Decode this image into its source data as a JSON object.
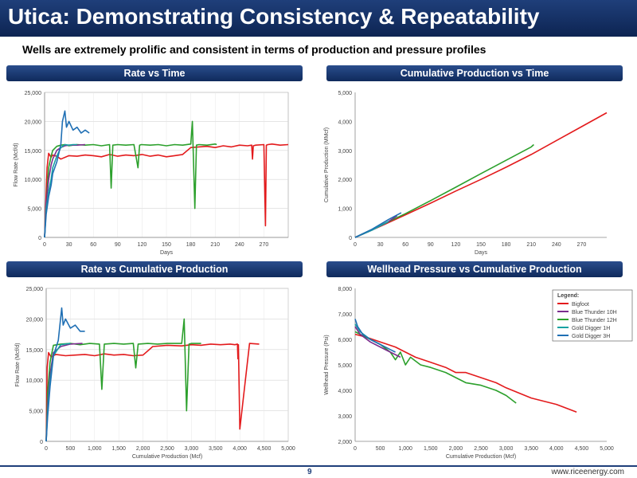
{
  "slide": {
    "title": "Utica: Demonstrating Consistency & Repeatability",
    "subtitle": "Wells are extremely prolific and consistent in terms of production and pressure profiles",
    "page_number": "9",
    "website": "www.riceenergy.com"
  },
  "colors": {
    "title_bar": "#1f3f7a",
    "bigfoot": "#e31a1c",
    "blue_thunder_10h": "#7b2d8e",
    "blue_thunder_12h": "#2ca02c",
    "gold_digger_1h": "#17a2a2",
    "gold_digger_3h": "#1f6fb4"
  },
  "legend": {
    "title": "Legend:",
    "items": [
      "Bigfoot",
      "Blue Thunder 10H",
      "Blue Thunder 12H",
      "Gold Digger 1H",
      "Gold Digger 3H"
    ]
  },
  "chart_data": [
    {
      "type": "line",
      "title": "Rate vs Time",
      "xlabel": "Days",
      "ylabel": "Flow Rate (Mcf/d)",
      "xlim": [
        0,
        300
      ],
      "ylim": [
        0,
        25000
      ],
      "xticks": [
        "0",
        "30",
        "60",
        "90",
        "120",
        "150",
        "180",
        "210",
        "240",
        "270"
      ],
      "yticks": [
        "0",
        "5,000",
        "10,000",
        "15,000",
        "20,000",
        "25,000"
      ],
      "grid": true,
      "series": [
        {
          "name": "Bigfoot",
          "x": [
            0,
            3,
            5,
            8,
            10,
            15,
            20,
            30,
            40,
            50,
            60,
            70,
            80,
            90,
            100,
            110,
            120,
            130,
            140,
            150,
            160,
            170,
            180,
            190,
            200,
            210,
            220,
            230,
            240,
            250,
            255,
            256,
            257,
            260,
            270,
            272,
            273,
            275,
            280,
            290,
            300
          ],
          "y": [
            0,
            12000,
            14500,
            13800,
            14200,
            14000,
            13500,
            14100,
            14000,
            14200,
            14100,
            13900,
            14300,
            14000,
            14200,
            14100,
            14300,
            14000,
            14200,
            13900,
            14100,
            14300,
            15500,
            15600,
            15700,
            15500,
            15800,
            15600,
            15900,
            15800,
            15900,
            13500,
            15800,
            15900,
            16000,
            2000,
            15900,
            16000,
            16100,
            15900,
            16000
          ]
        },
        {
          "name": "Blue Thunder 12H",
          "x": [
            0,
            3,
            5,
            8,
            10,
            15,
            20,
            25,
            30,
            40,
            50,
            60,
            70,
            80,
            82,
            84,
            90,
            100,
            110,
            115,
            117,
            119,
            130,
            140,
            150,
            160,
            170,
            180,
            182,
            185,
            187,
            190,
            200,
            210,
            212
          ],
          "y": [
            0,
            8000,
            12000,
            14000,
            15000,
            15700,
            15900,
            16000,
            15800,
            16000,
            15900,
            16000,
            15800,
            16000,
            8500,
            15900,
            16000,
            15900,
            16000,
            12000,
            15900,
            16000,
            15900,
            16000,
            15800,
            16000,
            15900,
            16100,
            20000,
            5000,
            15900,
            16000,
            15900,
            16100,
            16000
          ]
        },
        {
          "name": "Blue Thunder 10H",
          "x": [
            0,
            2,
            5,
            8,
            10,
            15,
            20,
            25,
            30,
            40,
            50
          ],
          "y": [
            0,
            6000,
            10000,
            12500,
            13500,
            15000,
            15500,
            15800,
            15900,
            15900,
            16000
          ]
        },
        {
          "name": "Gold Digger 1H",
          "x": [
            0,
            2,
            5,
            8,
            10,
            15,
            20,
            25,
            30,
            35,
            40
          ],
          "y": [
            0,
            5000,
            8000,
            10000,
            12000,
            14000,
            15500,
            16000,
            15900,
            16000,
            16000
          ]
        },
        {
          "name": "Gold Digger 3H",
          "x": [
            0,
            2,
            5,
            8,
            10,
            15,
            20,
            22,
            25,
            27,
            30,
            35,
            40,
            45,
            50,
            55
          ],
          "y": [
            0,
            4000,
            7000,
            9000,
            11000,
            13000,
            16000,
            20000,
            21800,
            19000,
            20000,
            18500,
            19000,
            18000,
            18500,
            18000
          ]
        }
      ]
    },
    {
      "type": "line",
      "title": "Cumulative Production vs Time",
      "xlabel": "Days",
      "ylabel": "Cumulative Production (MMcf)",
      "xlim": [
        0,
        300
      ],
      "ylim": [
        0,
        5000
      ],
      "xticks": [
        "0",
        "30",
        "60",
        "90",
        "120",
        "150",
        "180",
        "210",
        "240",
        "270"
      ],
      "yticks": [
        "0",
        "1,000",
        "2,000",
        "3,000",
        "4,000",
        "5,000"
      ],
      "grid": false,
      "series": [
        {
          "name": "Bigfoot",
          "x": [
            0,
            30,
            60,
            90,
            120,
            150,
            180,
            210,
            240,
            270,
            300
          ],
          "y": [
            0,
            380,
            780,
            1180,
            1600,
            2000,
            2420,
            2860,
            3340,
            3820,
            4300
          ]
        },
        {
          "name": "Blue Thunder 12H",
          "x": [
            0,
            30,
            60,
            90,
            120,
            150,
            180,
            210,
            213
          ],
          "y": [
            0,
            410,
            820,
            1270,
            1730,
            2200,
            2660,
            3120,
            3200
          ]
        },
        {
          "name": "Blue Thunder 10H",
          "x": [
            0,
            20,
            40,
            50
          ],
          "y": [
            0,
            250,
            550,
            750
          ]
        },
        {
          "name": "Gold Digger 1H",
          "x": [
            0,
            20,
            40
          ],
          "y": [
            0,
            250,
            550
          ]
        },
        {
          "name": "Gold Digger 3H",
          "x": [
            0,
            20,
            40,
            55
          ],
          "y": [
            0,
            280,
            620,
            850
          ]
        }
      ]
    },
    {
      "type": "line",
      "title": "Rate vs Cumulative Production",
      "xlabel": "Cumulative Production (Mcf)",
      "ylabel": "Flow Rate (Mcf/d)",
      "xlim": [
        0,
        5000
      ],
      "ylim": [
        0,
        25000
      ],
      "xticks": [
        "0",
        "500",
        "1,000",
        "1,500",
        "2,000",
        "2,500",
        "3,000",
        "3,500",
        "4,000",
        "4,500",
        "5,000"
      ],
      "yticks": [
        "0",
        "5,000",
        "10,000",
        "15,000",
        "20,000",
        "25,000"
      ],
      "grid": true,
      "series": [
        {
          "name": "Bigfoot",
          "x": [
            0,
            20,
            50,
            100,
            200,
            400,
            600,
            800,
            1000,
            1200,
            1400,
            1600,
            1800,
            2000,
            2200,
            2500,
            2800,
            3000,
            3200,
            3400,
            3600,
            3800,
            3900,
            3950,
            3960,
            3970,
            4000,
            4200,
            4400
          ],
          "y": [
            0,
            12000,
            14500,
            13800,
            14200,
            14000,
            14100,
            14200,
            14000,
            14300,
            14100,
            14200,
            14000,
            14100,
            15500,
            15700,
            15600,
            15800,
            15700,
            15900,
            15800,
            15900,
            15800,
            15900,
            13500,
            15800,
            2000,
            16000,
            15900
          ]
        },
        {
          "name": "Blue Thunder 12H",
          "x": [
            0,
            30,
            80,
            150,
            300,
            500,
            700,
            900,
            1100,
            1150,
            1200,
            1400,
            1600,
            1800,
            1850,
            1900,
            2100,
            2300,
            2500,
            2800,
            2850,
            2900,
            2950,
            3000,
            3200
          ],
          "y": [
            0,
            8000,
            13000,
            15700,
            15900,
            16000,
            15800,
            16000,
            15900,
            8500,
            15900,
            16000,
            15900,
            16000,
            12000,
            15900,
            16000,
            15900,
            16000,
            16000,
            20000,
            5000,
            15900,
            16000,
            16000
          ]
        },
        {
          "name": "Blue Thunder 10H",
          "x": [
            0,
            30,
            80,
            150,
            300,
            500,
            750
          ],
          "y": [
            0,
            6000,
            11000,
            14500,
            15500,
            15900,
            16000
          ]
        },
        {
          "name": "Gold Digger 1H",
          "x": [
            0,
            30,
            80,
            150,
            300,
            500
          ],
          "y": [
            0,
            5000,
            10000,
            14000,
            15800,
            16000
          ]
        },
        {
          "name": "Gold Digger 3H",
          "x": [
            0,
            30,
            80,
            150,
            250,
            320,
            350,
            400,
            500,
            600,
            700,
            800
          ],
          "y": [
            0,
            4000,
            9000,
            14000,
            16500,
            21800,
            19000,
            20000,
            18500,
            19000,
            18000,
            18000
          ]
        }
      ]
    },
    {
      "type": "line",
      "title": "Wellhead Pressure vs Cumulative Production",
      "xlabel": "Cumulative Production (Mcf)",
      "ylabel": "Wellhead Pressure (Psi)",
      "xlim": [
        0,
        5000
      ],
      "ylim": [
        2000,
        8000
      ],
      "xticks": [
        "0",
        "500",
        "1,000",
        "1,500",
        "2,000",
        "2,500",
        "3,000",
        "3,500",
        "4,000",
        "4,500",
        "5,000"
      ],
      "yticks": [
        "2,000",
        "3,000",
        "4,000",
        "5,000",
        "6,000",
        "7,000",
        "8,000"
      ],
      "grid": false,
      "series": [
        {
          "name": "Bigfoot",
          "x": [
            0,
            200,
            500,
            800,
            1000,
            1200,
            1500,
            1800,
            2000,
            2200,
            2500,
            2800,
            3000,
            3500,
            4000,
            4400
          ],
          "y": [
            6200,
            6100,
            5900,
            5700,
            5500,
            5300,
            5100,
            4900,
            4700,
            4700,
            4500,
            4300,
            4100,
            3700,
            3450,
            3150
          ]
        },
        {
          "name": "Blue Thunder 12H",
          "x": [
            0,
            200,
            500,
            700,
            800,
            900,
            1000,
            1100,
            1300,
            1500,
            1800,
            2000,
            2200,
            2500,
            2800,
            3000,
            3200
          ],
          "y": [
            6300,
            6100,
            5800,
            5500,
            5200,
            5500,
            5000,
            5300,
            5000,
            4900,
            4700,
            4500,
            4300,
            4200,
            4000,
            3800,
            3500
          ]
        },
        {
          "name": "Blue Thunder 10H",
          "x": [
            0,
            100,
            300,
            500,
            700,
            900
          ],
          "y": [
            6500,
            6200,
            5900,
            5700,
            5500,
            5300
          ]
        },
        {
          "name": "Gold Digger 1H",
          "x": [
            0,
            100,
            300,
            500
          ],
          "y": [
            6600,
            6300,
            6000,
            5800
          ]
        },
        {
          "name": "Gold Digger 3H",
          "x": [
            0,
            50,
            150,
            300,
            500,
            700,
            800
          ],
          "y": [
            6800,
            6500,
            6200,
            6000,
            5800,
            5600,
            5500
          ]
        }
      ]
    }
  ]
}
